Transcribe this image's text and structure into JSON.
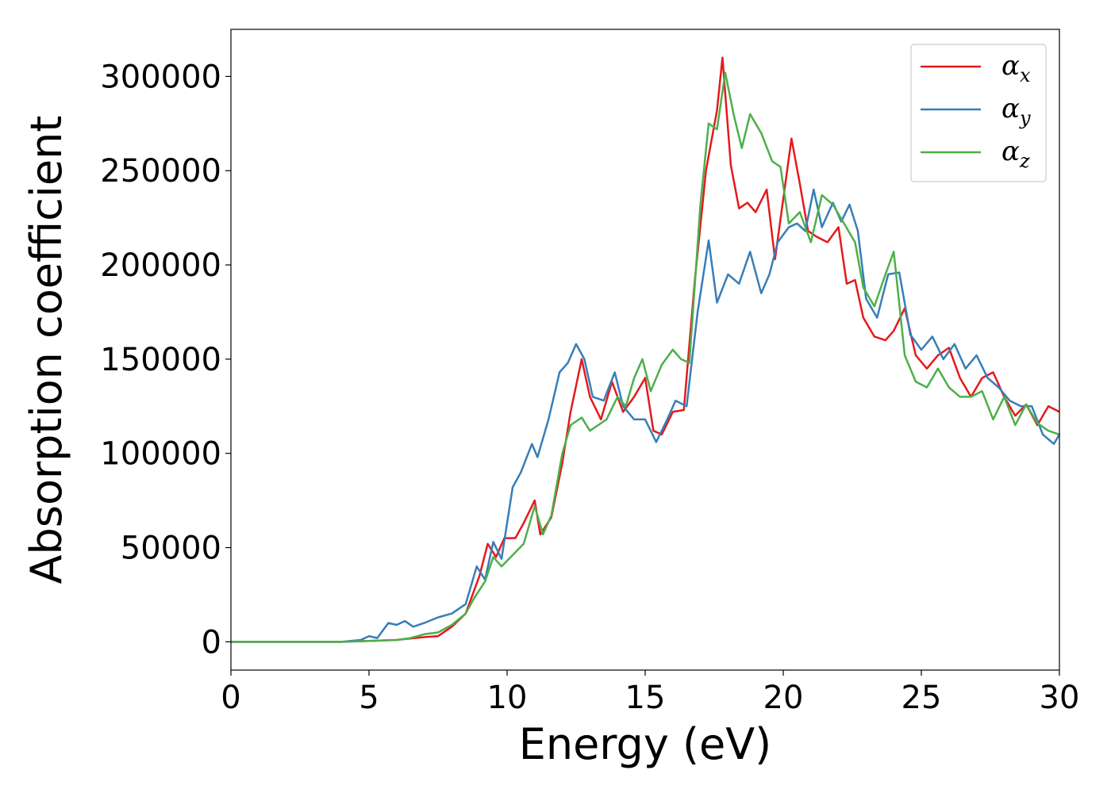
{
  "chart_data": {
    "type": "line",
    "title": "",
    "xlabel": "Energy (eV)",
    "ylabel": "Absorption coefficient",
    "xlim": [
      0,
      30
    ],
    "ylim": [
      -15000,
      325000
    ],
    "xticks": [
      "0",
      "5",
      "10",
      "15",
      "20",
      "25",
      "30"
    ],
    "xtick_values": [
      0,
      5,
      10,
      15,
      20,
      25,
      30
    ],
    "yticks": [
      "0",
      "50000",
      "100000",
      "150000",
      "200000",
      "250000",
      "300000"
    ],
    "ytick_values": [
      0,
      50000,
      100000,
      150000,
      200000,
      250000,
      300000
    ],
    "grid": false,
    "legend_position": "top-right",
    "legend": [
      {
        "base": "α",
        "sub": "x",
        "color": "#e41a1c"
      },
      {
        "base": "α",
        "sub": "y",
        "color": "#377eb8"
      },
      {
        "base": "α",
        "sub": "z",
        "color": "#4daf4a"
      }
    ],
    "series": [
      {
        "key": "x",
        "color": "#e41a1c",
        "points": [
          [
            0,
            0
          ],
          [
            4,
            0
          ],
          [
            5,
            500
          ],
          [
            6,
            1000
          ],
          [
            7,
            2500
          ],
          [
            7.5,
            3000
          ],
          [
            8,
            8000
          ],
          [
            8.5,
            15000
          ],
          [
            9,
            35000
          ],
          [
            9.3,
            52000
          ],
          [
            9.6,
            45000
          ],
          [
            9.9,
            55000
          ],
          [
            10.3,
            55000
          ],
          [
            10.6,
            63000
          ],
          [
            11,
            75000
          ],
          [
            11.2,
            57000
          ],
          [
            11.6,
            66000
          ],
          [
            12,
            95000
          ],
          [
            12.3,
            122000
          ],
          [
            12.7,
            150000
          ],
          [
            13,
            130000
          ],
          [
            13.4,
            118000
          ],
          [
            13.8,
            138000
          ],
          [
            14.2,
            122000
          ],
          [
            14.6,
            130000
          ],
          [
            15,
            140000
          ],
          [
            15.3,
            112000
          ],
          [
            15.6,
            110000
          ],
          [
            16,
            122000
          ],
          [
            16.4,
            123000
          ],
          [
            16.8,
            192000
          ],
          [
            17.2,
            250000
          ],
          [
            17.6,
            282000
          ],
          [
            17.8,
            310000
          ],
          [
            18.1,
            253000
          ],
          [
            18.4,
            230000
          ],
          [
            18.7,
            233000
          ],
          [
            19,
            228000
          ],
          [
            19.4,
            240000
          ],
          [
            19.7,
            203000
          ],
          [
            20,
            235000
          ],
          [
            20.3,
            267000
          ],
          [
            20.6,
            243000
          ],
          [
            20.9,
            218000
          ],
          [
            21.2,
            215000
          ],
          [
            21.6,
            212000
          ],
          [
            22,
            220000
          ],
          [
            22.3,
            190000
          ],
          [
            22.6,
            192000
          ],
          [
            22.9,
            172000
          ],
          [
            23.3,
            162000
          ],
          [
            23.7,
            160000
          ],
          [
            24,
            165000
          ],
          [
            24.4,
            177000
          ],
          [
            24.8,
            152000
          ],
          [
            25.2,
            145000
          ],
          [
            25.6,
            152000
          ],
          [
            26,
            156000
          ],
          [
            26.4,
            140000
          ],
          [
            26.8,
            130000
          ],
          [
            27.2,
            140000
          ],
          [
            27.6,
            143000
          ],
          [
            28,
            130000
          ],
          [
            28.4,
            120000
          ],
          [
            28.8,
            126000
          ],
          [
            29.2,
            115000
          ],
          [
            29.6,
            125000
          ],
          [
            30,
            122000
          ]
        ]
      },
      {
        "key": "y",
        "color": "#377eb8",
        "points": [
          [
            0,
            0
          ],
          [
            4,
            0
          ],
          [
            4.7,
            1000
          ],
          [
            5,
            3000
          ],
          [
            5.3,
            2000
          ],
          [
            5.7,
            10000
          ],
          [
            6,
            9000
          ],
          [
            6.3,
            11000
          ],
          [
            6.6,
            8000
          ],
          [
            7,
            10000
          ],
          [
            7.5,
            13000
          ],
          [
            8,
            15000
          ],
          [
            8.5,
            20000
          ],
          [
            8.9,
            40000
          ],
          [
            9.2,
            33000
          ],
          [
            9.5,
            53000
          ],
          [
            9.8,
            44000
          ],
          [
            10.2,
            82000
          ],
          [
            10.5,
            90000
          ],
          [
            10.9,
            105000
          ],
          [
            11.1,
            98000
          ],
          [
            11.5,
            118000
          ],
          [
            11.9,
            143000
          ],
          [
            12.2,
            148000
          ],
          [
            12.5,
            158000
          ],
          [
            12.8,
            150000
          ],
          [
            13.1,
            130000
          ],
          [
            13.5,
            128000
          ],
          [
            13.9,
            143000
          ],
          [
            14.2,
            125000
          ],
          [
            14.6,
            118000
          ],
          [
            15,
            118000
          ],
          [
            15.4,
            106000
          ],
          [
            15.8,
            118000
          ],
          [
            16.1,
            128000
          ],
          [
            16.5,
            125000
          ],
          [
            16.9,
            175000
          ],
          [
            17.3,
            213000
          ],
          [
            17.6,
            180000
          ],
          [
            18,
            195000
          ],
          [
            18.4,
            190000
          ],
          [
            18.8,
            207000
          ],
          [
            19.2,
            185000
          ],
          [
            19.5,
            195000
          ],
          [
            19.8,
            212000
          ],
          [
            20.2,
            220000
          ],
          [
            20.5,
            222000
          ],
          [
            20.8,
            218000
          ],
          [
            21.1,
            240000
          ],
          [
            21.4,
            220000
          ],
          [
            21.8,
            233000
          ],
          [
            22.1,
            223000
          ],
          [
            22.4,
            232000
          ],
          [
            22.7,
            218000
          ],
          [
            23,
            182000
          ],
          [
            23.4,
            172000
          ],
          [
            23.8,
            195000
          ],
          [
            24.2,
            196000
          ],
          [
            24.6,
            163000
          ],
          [
            25,
            155000
          ],
          [
            25.4,
            162000
          ],
          [
            25.8,
            150000
          ],
          [
            26.2,
            158000
          ],
          [
            26.6,
            145000
          ],
          [
            27,
            152000
          ],
          [
            27.4,
            140000
          ],
          [
            27.8,
            135000
          ],
          [
            28.2,
            128000
          ],
          [
            28.6,
            125000
          ],
          [
            29,
            125000
          ],
          [
            29.4,
            110000
          ],
          [
            29.8,
            105000
          ],
          [
            30,
            110000
          ]
        ]
      },
      {
        "key": "z",
        "color": "#4daf4a",
        "points": [
          [
            0,
            0
          ],
          [
            4,
            0
          ],
          [
            5,
            500
          ],
          [
            6,
            1000
          ],
          [
            6.5,
            2000
          ],
          [
            7,
            4000
          ],
          [
            7.5,
            5000
          ],
          [
            8,
            9000
          ],
          [
            8.5,
            15000
          ],
          [
            8.8,
            23000
          ],
          [
            9.2,
            32000
          ],
          [
            9.5,
            45000
          ],
          [
            9.8,
            40000
          ],
          [
            10.2,
            46000
          ],
          [
            10.6,
            52000
          ],
          [
            11,
            72000
          ],
          [
            11.3,
            57000
          ],
          [
            11.6,
            67000
          ],
          [
            12,
            100000
          ],
          [
            12.3,
            115000
          ],
          [
            12.7,
            119000
          ],
          [
            13,
            112000
          ],
          [
            13.3,
            115000
          ],
          [
            13.6,
            118000
          ],
          [
            14,
            130000
          ],
          [
            14.3,
            125000
          ],
          [
            14.6,
            140000
          ],
          [
            14.9,
            150000
          ],
          [
            15.2,
            133000
          ],
          [
            15.6,
            147000
          ],
          [
            16,
            155000
          ],
          [
            16.3,
            150000
          ],
          [
            16.6,
            148000
          ],
          [
            17,
            232000
          ],
          [
            17.3,
            275000
          ],
          [
            17.6,
            272000
          ],
          [
            17.9,
            302000
          ],
          [
            18.2,
            280000
          ],
          [
            18.5,
            262000
          ],
          [
            18.8,
            280000
          ],
          [
            19.2,
            270000
          ],
          [
            19.6,
            255000
          ],
          [
            19.9,
            252000
          ],
          [
            20.2,
            222000
          ],
          [
            20.6,
            228000
          ],
          [
            21,
            212000
          ],
          [
            21.4,
            237000
          ],
          [
            21.8,
            232000
          ],
          [
            22.2,
            222000
          ],
          [
            22.6,
            212000
          ],
          [
            22.9,
            188000
          ],
          [
            23.3,
            178000
          ],
          [
            23.7,
            195000
          ],
          [
            24,
            207000
          ],
          [
            24.4,
            152000
          ],
          [
            24.8,
            138000
          ],
          [
            25.2,
            135000
          ],
          [
            25.6,
            145000
          ],
          [
            26,
            135000
          ],
          [
            26.4,
            130000
          ],
          [
            26.8,
            130000
          ],
          [
            27.2,
            133000
          ],
          [
            27.6,
            118000
          ],
          [
            28,
            130000
          ],
          [
            28.4,
            115000
          ],
          [
            28.8,
            126000
          ],
          [
            29.2,
            116000
          ],
          [
            29.6,
            112000
          ],
          [
            30,
            110000
          ]
        ]
      }
    ]
  }
}
